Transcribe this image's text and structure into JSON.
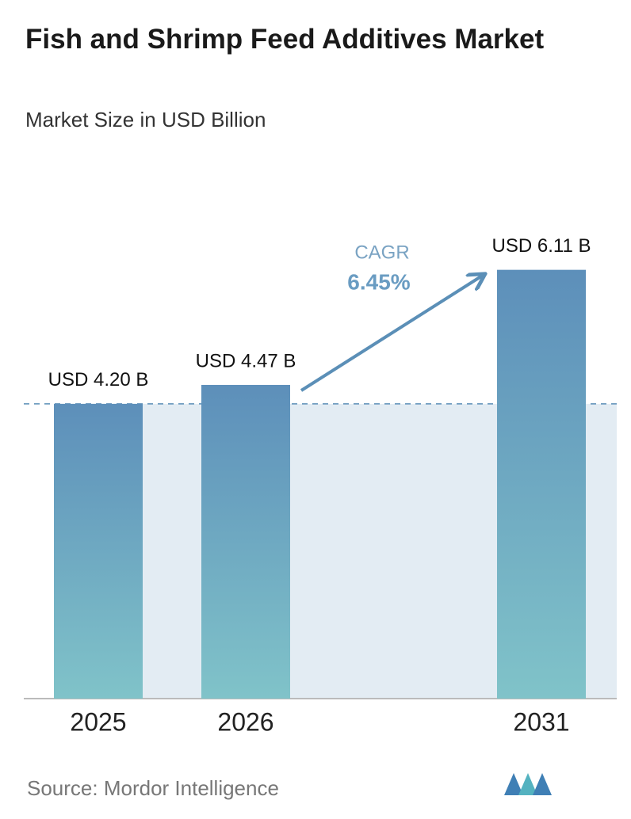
{
  "chart_data": {
    "type": "bar",
    "title": "Fish and Shrimp Feed Additives Market",
    "subtitle": "Market Size in USD Billion",
    "categories": [
      "2025",
      "2026",
      "2031"
    ],
    "values": [
      4.2,
      4.47,
      6.11
    ],
    "value_labels": [
      "USD 4.20 B",
      "USD 4.47 B",
      "USD 6.11 B"
    ],
    "colors": [
      "#5d8fba",
      "#80c3c9"
    ],
    "annotation": {
      "label": "CAGR",
      "value": "6.45%"
    },
    "source": "Source:  Mordor Intelligence"
  }
}
